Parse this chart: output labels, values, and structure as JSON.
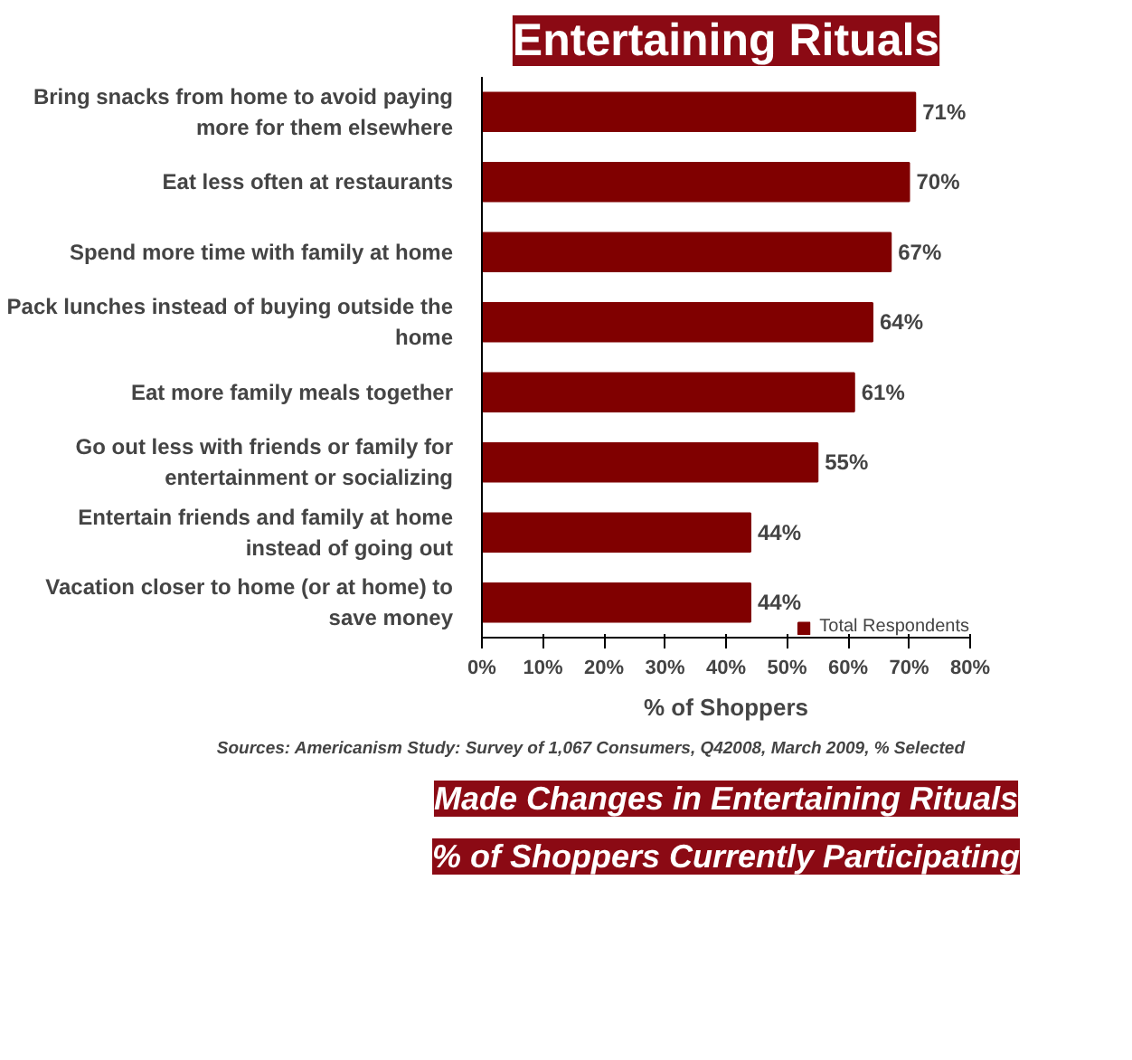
{
  "chart_data": {
    "type": "bar",
    "orientation": "horizontal",
    "title": "Entertaining Rituals",
    "xlabel": "% of Shoppers",
    "categories": [
      "Bring snacks from home to avoid paying more for them elsewhere",
      "Eat less often at restaurants",
      "Spend more time with family at home",
      "Pack lunches instead of buying outside the home",
      "Eat more family meals together",
      "Go out less with friends or family for entertainment or socializing",
      "Entertain friends and family at home instead of going out",
      "Vacation closer to home (or at home) to save money"
    ],
    "series": [
      {
        "name": "Total Respondents",
        "color": "#800000",
        "values": [
          71,
          70,
          67,
          64,
          61,
          55,
          44,
          44
        ],
        "value_labels": [
          "71%",
          "70%",
          "67%",
          "64%",
          "61%",
          "55%",
          "44%",
          "44%"
        ]
      }
    ],
    "xlim": [
      0,
      80
    ],
    "xticks": [
      {
        "value": 0,
        "label": "0%"
      },
      {
        "value": 10,
        "label": "10%"
      },
      {
        "value": 20,
        "label": "20%"
      },
      {
        "value": 30,
        "label": "30%"
      },
      {
        "value": 40,
        "label": "40%"
      },
      {
        "value": 50,
        "label": "50%"
      },
      {
        "value": 60,
        "label": "60%"
      },
      {
        "value": 70,
        "label": "70%"
      },
      {
        "value": 80,
        "label": "80%"
      }
    ],
    "legend": "bottom right",
    "grid": false,
    "annotations": [
      "Sources: Americanism Study: Survey of 1,067 Consumers, Q42008,  March 2009, % Selected",
      "Made Changes in Entertaining Rituals",
      "% of Shoppers Currently Participating"
    ]
  }
}
